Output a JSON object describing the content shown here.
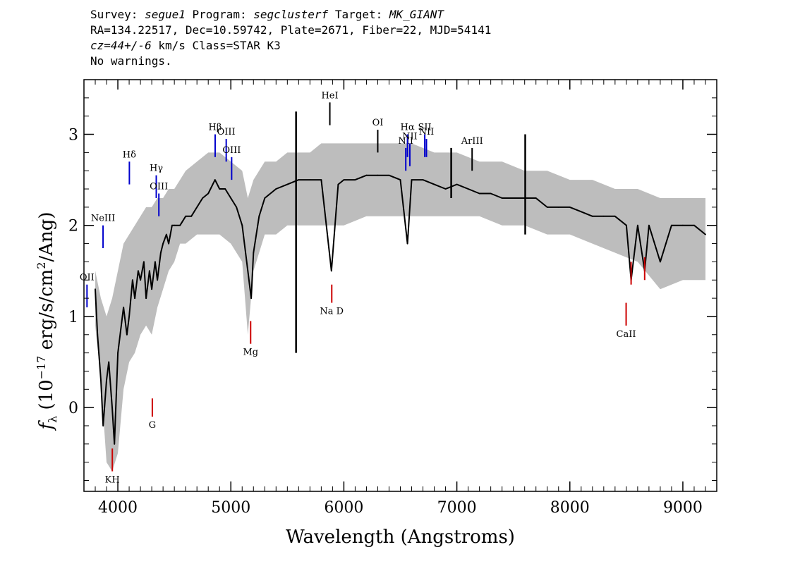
{
  "header": {
    "survey_label": "Survey:",
    "survey_value": "segue1",
    "program_label": "Program:",
    "program_value": "segclusterf",
    "target_label": "Target:",
    "target_value": "MK_GIANT",
    "line2": "RA=134.22517, Dec=10.59742, Plate=2671, Fiber=22, MJD=54141",
    "cz_value": "cz=44+/-6",
    "cz_rest": " km/s Class=STAR K3",
    "warnings": "No warnings."
  },
  "chart_data": {
    "type": "line",
    "xlabel": "Wavelength (Angstroms)",
    "ylabel_parts": {
      "f": "f",
      "lambda": "λ",
      "open": " (10",
      "exp": "−17",
      "mid": " erg/s/cm",
      "exp2": "2",
      "close": "/Ang)"
    },
    "xlim": [
      3700,
      9300
    ],
    "ylim": [
      -0.92,
      3.6
    ],
    "xticks": [
      4000,
      5000,
      6000,
      7000,
      8000,
      9000
    ],
    "xtick_labels": [
      "4000",
      "5000",
      "6000",
      "7000",
      "8000",
      "9000"
    ],
    "yticks": [
      0,
      1,
      2,
      3
    ],
    "ytick_labels": [
      "0",
      "1",
      "2",
      "3"
    ],
    "series": [
      {
        "role": "error-band",
        "color": "#bdbdbd",
        "x": [
          3800,
          3850,
          3900,
          3950,
          4000,
          4050,
          4100,
          4150,
          4200,
          4250,
          4300,
          4350,
          4400,
          4450,
          4500,
          4550,
          4600,
          4700,
          4800,
          4900,
          5000,
          5100,
          5150,
          5200,
          5300,
          5400,
          5500,
          5600,
          5700,
          5800,
          5900,
          6000,
          6200,
          6400,
          6600,
          6800,
          7000,
          7200,
          7400,
          7600,
          7800,
          8000,
          8200,
          8400,
          8600,
          8800,
          9000,
          9200
        ],
        "lower": [
          0.9,
          0.3,
          -0.6,
          -0.7,
          -0.5,
          0.2,
          0.5,
          0.6,
          0.8,
          0.9,
          0.8,
          1.1,
          1.3,
          1.5,
          1.6,
          1.8,
          1.8,
          1.9,
          1.9,
          1.9,
          1.8,
          1.6,
          0.8,
          1.5,
          1.9,
          1.9,
          2.0,
          2.0,
          2.0,
          2.0,
          2.0,
          2.0,
          2.1,
          2.1,
          2.1,
          2.1,
          2.1,
          2.1,
          2.0,
          2.0,
          1.9,
          1.9,
          1.8,
          1.7,
          1.6,
          1.3,
          1.4,
          1.4
        ],
        "upper": [
          1.5,
          1.2,
          1.0,
          1.2,
          1.5,
          1.8,
          1.9,
          2.0,
          2.1,
          2.2,
          2.2,
          2.3,
          2.3,
          2.4,
          2.4,
          2.5,
          2.6,
          2.7,
          2.8,
          2.8,
          2.7,
          2.6,
          2.3,
          2.5,
          2.7,
          2.7,
          2.8,
          2.8,
          2.8,
          2.9,
          2.9,
          2.9,
          2.9,
          2.9,
          2.9,
          2.8,
          2.8,
          2.7,
          2.7,
          2.6,
          2.6,
          2.5,
          2.5,
          2.4,
          2.4,
          2.3,
          2.3,
          2.3
        ]
      },
      {
        "role": "flux",
        "color": "#000000",
        "x": [
          3800,
          3820,
          3850,
          3870,
          3900,
          3920,
          3950,
          3970,
          4000,
          4030,
          4050,
          4080,
          4100,
          4130,
          4150,
          4180,
          4200,
          4230,
          4250,
          4280,
          4300,
          4330,
          4350,
          4380,
          4400,
          4430,
          4450,
          4480,
          4500,
          4550,
          4600,
          4650,
          4700,
          4750,
          4800,
          4860,
          4900,
          4950,
          5000,
          5050,
          5100,
          5150,
          5180,
          5200,
          5250,
          5300,
          5400,
          5500,
          5600,
          5700,
          5800,
          5890,
          5950,
          6000,
          6100,
          6200,
          6300,
          6400,
          6500,
          6563,
          6600,
          6700,
          6800,
          6900,
          7000,
          7100,
          7200,
          7300,
          7400,
          7500,
          7600,
          7700,
          7800,
          7900,
          8000,
          8100,
          8200,
          8300,
          8400,
          8500,
          8542,
          8600,
          8662,
          8700,
          8800,
          8900,
          9000,
          9100,
          9200
        ],
        "y": [
          1.3,
          0.8,
          0.3,
          -0.2,
          0.3,
          0.5,
          0.0,
          -0.4,
          0.6,
          0.9,
          1.1,
          0.8,
          1.0,
          1.4,
          1.2,
          1.5,
          1.4,
          1.6,
          1.2,
          1.5,
          1.3,
          1.6,
          1.4,
          1.7,
          1.8,
          1.9,
          1.8,
          2.0,
          2.0,
          2.0,
          2.1,
          2.1,
          2.2,
          2.3,
          2.35,
          2.5,
          2.4,
          2.4,
          2.3,
          2.2,
          2.0,
          1.5,
          1.2,
          1.7,
          2.1,
          2.3,
          2.4,
          2.45,
          2.5,
          2.5,
          2.5,
          1.5,
          2.45,
          2.5,
          2.5,
          2.55,
          2.55,
          2.55,
          2.5,
          1.8,
          2.5,
          2.5,
          2.45,
          2.4,
          2.45,
          2.4,
          2.35,
          2.35,
          2.3,
          2.3,
          2.3,
          2.3,
          2.2,
          2.2,
          2.2,
          2.15,
          2.1,
          2.1,
          2.1,
          2.0,
          1.4,
          2.0,
          1.5,
          2.0,
          1.6,
          2.0,
          2.0,
          2.0,
          1.9
        ]
      }
    ],
    "spikes": [
      {
        "x": 5577,
        "ymin": 0.6,
        "ymax": 3.25
      },
      {
        "x": 7605,
        "ymin": 1.9,
        "ymax": 3.0
      },
      {
        "x": 6950,
        "ymin": 2.3,
        "ymax": 2.85
      }
    ],
    "emission_lines": [
      {
        "label": "HeI",
        "x": 5876,
        "y1": 3.1,
        "y2": 3.35,
        "color": "#000000"
      },
      {
        "label": "OI",
        "x": 6300,
        "y1": 2.8,
        "y2": 3.05,
        "color": "#000000"
      },
      {
        "label": "NII",
        "x": 6548,
        "y1": 2.6,
        "y2": 2.85,
        "color": "#0000cc"
      },
      {
        "label": "Hα",
        "x": 6563,
        "y1": 2.75,
        "y2": 3.0,
        "color": "#0000cc"
      },
      {
        "label": "NII",
        "x": 6584,
        "y1": 2.65,
        "y2": 2.9,
        "color": "#0000cc"
      },
      {
        "label": "SII",
        "x": 6716,
        "y1": 2.75,
        "y2": 3.0,
        "color": "#0000cc"
      },
      {
        "label": "NII",
        "x": 6731,
        "y1": 2.75,
        "y2": 2.95,
        "color": "#0000cc"
      },
      {
        "label": "ArIII",
        "x": 7135,
        "y1": 2.6,
        "y2": 2.85,
        "color": "#000000"
      },
      {
        "label": "Hβ",
        "x": 4861,
        "y1": 2.75,
        "y2": 3.0,
        "color": "#0000cc"
      },
      {
        "label": "OIII",
        "x": 4959,
        "y1": 2.7,
        "y2": 2.95,
        "color": "#0000cc"
      },
      {
        "label": "OIII",
        "x": 5007,
        "y1": 2.5,
        "y2": 2.75,
        "color": "#0000cc"
      },
      {
        "label": "Hγ",
        "x": 4340,
        "y1": 2.3,
        "y2": 2.55,
        "color": "#0000cc"
      },
      {
        "label": "OIII",
        "x": 4363,
        "y1": 2.1,
        "y2": 2.35,
        "color": "#0000cc"
      },
      {
        "label": "Hδ",
        "x": 4102,
        "y1": 2.45,
        "y2": 2.7,
        "color": "#0000cc"
      },
      {
        "label": "NeIII",
        "x": 3869,
        "y1": 1.75,
        "y2": 2.0,
        "color": "#0000cc"
      },
      {
        "label": "OII",
        "x": 3727,
        "y1": 1.1,
        "y2": 1.35,
        "color": "#0000cc"
      }
    ],
    "absorption_lines": [
      {
        "label": "Na D",
        "x": 5893,
        "y1": 1.35,
        "y2": 1.15,
        "color": "#cc0000"
      },
      {
        "label": "Mg",
        "x": 5175,
        "y1": 0.95,
        "y2": 0.7,
        "color": "#cc0000"
      },
      {
        "label": "G",
        "x": 4305,
        "y1": 0.1,
        "y2": -0.1,
        "color": "#cc0000"
      },
      {
        "label": "KH",
        "x": 3951,
        "y1": -0.45,
        "y2": -0.7,
        "color": "#cc0000"
      },
      {
        "label": "CaII",
        "x": 8498,
        "y1": 1.15,
        "y2": 0.9,
        "color": "#cc0000"
      },
      {
        "label": "",
        "x": 8542,
        "y1": 1.6,
        "y2": 1.35,
        "color": "#cc0000"
      },
      {
        "label": "",
        "x": 8662,
        "y1": 1.65,
        "y2": 1.4,
        "color": "#cc0000"
      }
    ]
  }
}
